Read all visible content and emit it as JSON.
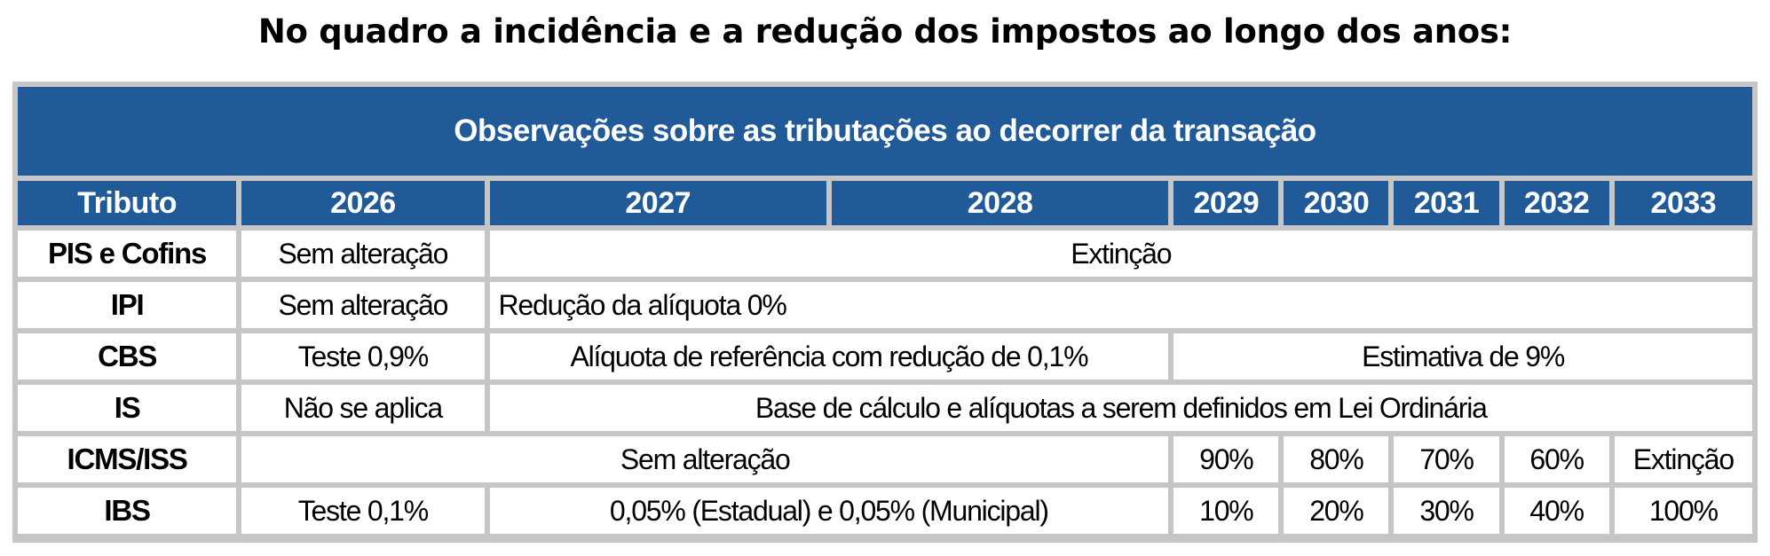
{
  "title": "No quadro a incidência e a redução dos impostos ao longo dos anos:",
  "table": {
    "banner": "Observações sobre as tributações ao decorrer da transação",
    "headers": [
      "Tributo",
      "2026",
      "2027",
      "2028",
      "2029",
      "2030",
      "2031",
      "2032",
      "2033"
    ],
    "rows": {
      "pis": {
        "name": "PIS e Cofins",
        "y2026": "Sem alteração",
        "rest": "Extinção"
      },
      "ipi": {
        "name": "IPI",
        "y2026": "Sem alteração",
        "rest": "Redução da alíquota 0%"
      },
      "cbs": {
        "name": "CBS",
        "y2026": "Teste 0,9%",
        "y2027_2028": "Alíquota de referência com redução de 0,1%",
        "y2029_2033": "Estimativa de 9%"
      },
      "is": {
        "name": "IS",
        "y2026": "Não se aplica",
        "rest": "Base de cálculo e alíquotas a serem definidos em Lei Ordinária"
      },
      "icms": {
        "name": "ICMS/ISS",
        "y2026_2028": "Sem alteração",
        "y2029": "90%",
        "y2030": "80%",
        "y2031": "70%",
        "y2032": "60%",
        "y2033": "Extinção"
      },
      "ibs": {
        "name": "IBS",
        "y2026": "Teste 0,1%",
        "y2027_2028": "0,05% (Estadual) e 0,05% (Municipal)",
        "y2029": "10%",
        "y2030": "20%",
        "y2031": "30%",
        "y2032": "40%",
        "y2033": "100%"
      }
    }
  }
}
